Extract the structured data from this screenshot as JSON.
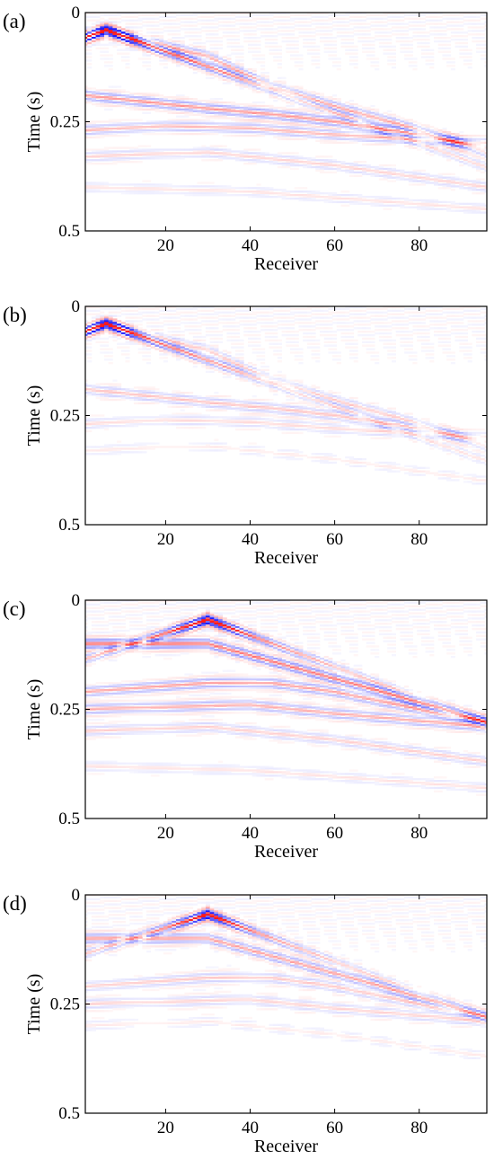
{
  "chart_data": [
    {
      "type": "heatmap",
      "panel_label": "(a)",
      "xlabel": "Receiver",
      "ylabel": "Time (s)",
      "xlim": [
        1,
        96
      ],
      "ylim": [
        0,
        0.5
      ],
      "y_inverted": true,
      "x_ticks": [
        20,
        40,
        60,
        80
      ],
      "x_tick_labels": [
        "20",
        "40",
        "60",
        "80"
      ],
      "y_ticks": [
        0,
        0.25,
        0.5
      ],
      "y_tick_labels": [
        "0",
        "0.25",
        "0.5"
      ],
      "colormap": [
        "#1a1aff",
        "#ffffff",
        "#ff1a1a"
      ],
      "source_receiver": 6,
      "apex_time": 0.04,
      "direct_slope_left": 0.0035,
      "direct_slope_right": 0.0035,
      "direct_fade": 0.012,
      "events": [
        {
          "r": [
            6,
            30,
            45,
            60,
            75,
            96
          ],
          "t": [
            0.045,
            0.1,
            0.17,
            0.215,
            0.255,
            0.32
          ],
          "amp": 0.35
        },
        {
          "r": [
            1,
            30,
            47,
            60,
            80,
            96
          ],
          "t": [
            0.19,
            0.22,
            0.235,
            0.25,
            0.28,
            0.31
          ],
          "amp": 0.45
        },
        {
          "r": [
            1,
            20,
            40,
            60,
            96
          ],
          "t": [
            0.27,
            0.26,
            0.265,
            0.28,
            0.3
          ],
          "amp": 0.3
        },
        {
          "r": [
            1,
            30,
            60,
            96
          ],
          "t": [
            0.33,
            0.32,
            0.35,
            0.4
          ],
          "amp": 0.18
        },
        {
          "r": [
            1,
            40,
            96
          ],
          "t": [
            0.4,
            0.41,
            0.45
          ],
          "amp": 0.12
        }
      ]
    },
    {
      "type": "heatmap",
      "panel_label": "(b)",
      "xlabel": "Receiver",
      "ylabel": "Time (s)",
      "xlim": [
        1,
        96
      ],
      "ylim": [
        0,
        0.5
      ],
      "y_inverted": true,
      "x_ticks": [
        20,
        40,
        60,
        80
      ],
      "x_tick_labels": [
        "20",
        "40",
        "60",
        "80"
      ],
      "y_ticks": [
        0,
        0.25,
        0.5
      ],
      "y_tick_labels": [
        "0",
        "0.25",
        "0.5"
      ],
      "colormap": [
        "#1a1aff",
        "#ffffff",
        "#ff1a1a"
      ],
      "source_receiver": 6,
      "apex_time": 0.04,
      "direct_slope_left": 0.0035,
      "direct_slope_right": 0.0035,
      "direct_fade": 0.016,
      "events": [
        {
          "r": [
            6,
            30,
            45,
            60,
            75,
            96
          ],
          "t": [
            0.045,
            0.1,
            0.17,
            0.215,
            0.255,
            0.32
          ],
          "amp": 0.2
        },
        {
          "r": [
            1,
            30,
            47,
            60,
            80,
            96
          ],
          "t": [
            0.19,
            0.22,
            0.235,
            0.25,
            0.28,
            0.31
          ],
          "amp": 0.25
        },
        {
          "r": [
            1,
            20,
            40,
            60,
            96
          ],
          "t": [
            0.27,
            0.26,
            0.265,
            0.28,
            0.3
          ],
          "amp": 0.15
        },
        {
          "r": [
            1,
            30,
            60,
            96
          ],
          "t": [
            0.33,
            0.32,
            0.35,
            0.4
          ],
          "amp": 0.08
        }
      ]
    },
    {
      "type": "heatmap",
      "panel_label": "(c)",
      "xlabel": "Receiver",
      "ylabel": "Time (s)",
      "xlim": [
        1,
        96
      ],
      "ylim": [
        0,
        0.5
      ],
      "y_inverted": true,
      "x_ticks": [
        20,
        40,
        60,
        80
      ],
      "x_tick_labels": [
        "20",
        "40",
        "60",
        "80"
      ],
      "y_ticks": [
        0,
        0.25,
        0.5
      ],
      "y_tick_labels": [
        "0",
        "0.25",
        "0.5"
      ],
      "colormap": [
        "#1a1aff",
        "#ffffff",
        "#ff1a1a"
      ],
      "source_receiver": 30,
      "apex_time": 0.045,
      "direct_slope_left": 0.0031,
      "direct_slope_right": 0.0036,
      "direct_fade": 0.02,
      "events": [
        {
          "r": [
            30,
            45,
            60,
            75,
            96
          ],
          "t": [
            0.1,
            0.14,
            0.18,
            0.22,
            0.28
          ],
          "amp": 0.6
        },
        {
          "r": [
            1,
            15,
            30,
            45,
            60,
            80,
            96
          ],
          "t": [
            0.21,
            0.2,
            0.19,
            0.19,
            0.21,
            0.25,
            0.28
          ],
          "amp": 0.4
        },
        {
          "r": [
            1,
            20,
            40,
            60,
            96
          ],
          "t": [
            0.25,
            0.245,
            0.24,
            0.26,
            0.29
          ],
          "amp": 0.35
        },
        {
          "r": [
            1,
            30,
            60,
            96
          ],
          "t": [
            0.3,
            0.29,
            0.32,
            0.37
          ],
          "amp": 0.2
        },
        {
          "r": [
            1,
            40,
            96
          ],
          "t": [
            0.38,
            0.39,
            0.43
          ],
          "amp": 0.12
        }
      ]
    },
    {
      "type": "heatmap",
      "panel_label": "(d)",
      "xlabel": "Receiver",
      "ylabel": "Time (s)",
      "xlim": [
        1,
        96
      ],
      "ylim": [
        0,
        0.5
      ],
      "y_inverted": true,
      "x_ticks": [
        20,
        40,
        60,
        80
      ],
      "x_tick_labels": [
        "20",
        "40",
        "60",
        "80"
      ],
      "y_ticks": [
        0,
        0.25,
        0.5
      ],
      "y_tick_labels": [
        "0",
        "0.25",
        "0.5"
      ],
      "colormap": [
        "#1a1aff",
        "#ffffff",
        "#ff1a1a"
      ],
      "source_receiver": 30,
      "apex_time": 0.045,
      "direct_slope_left": 0.0031,
      "direct_slope_right": 0.0036,
      "direct_fade": 0.025,
      "events": [
        {
          "r": [
            30,
            45,
            60,
            75,
            96
          ],
          "t": [
            0.1,
            0.14,
            0.18,
            0.22,
            0.28
          ],
          "amp": 0.4
        },
        {
          "r": [
            1,
            15,
            30,
            45,
            60,
            80,
            96
          ],
          "t": [
            0.21,
            0.2,
            0.19,
            0.19,
            0.21,
            0.25,
            0.28
          ],
          "amp": 0.22
        },
        {
          "r": [
            1,
            20,
            40,
            60,
            96
          ],
          "t": [
            0.25,
            0.245,
            0.24,
            0.26,
            0.29
          ],
          "amp": 0.18
        },
        {
          "r": [
            1,
            30,
            60,
            96
          ],
          "t": [
            0.3,
            0.29,
            0.32,
            0.37
          ],
          "amp": 0.08
        }
      ]
    }
  ]
}
